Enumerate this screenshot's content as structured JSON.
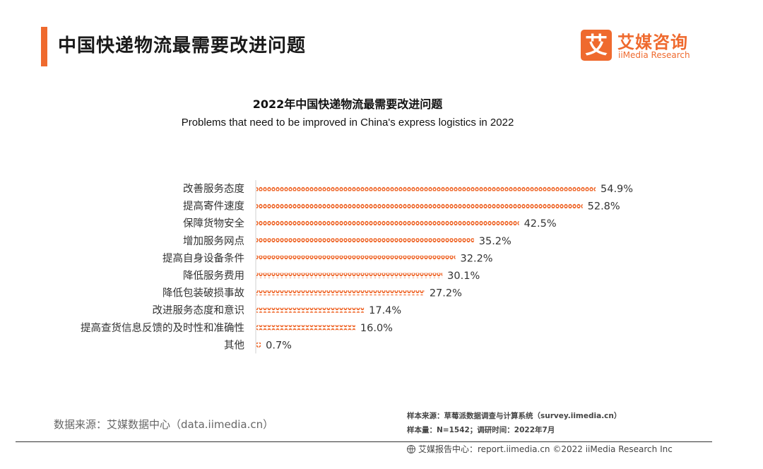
{
  "header": {
    "title": "中国快递物流最需要改进问题",
    "accent_color": "#ef6a2e"
  },
  "logo": {
    "mark": "艾",
    "cn": "艾媒咨询",
    "en": "iiMedia Research"
  },
  "chart_data": {
    "type": "bar",
    "orientation": "horizontal",
    "title": "2022年中国快递物流最需要改进问题",
    "subtitle": "Problems that need to be improved in China's express logistics in 2022",
    "categories": [
      "改善服务态度",
      "提高寄件速度",
      "保障货物安全",
      "增加服务网点",
      "提高自身设备条件",
      "降低服务费用",
      "降低包装破损事故",
      "改进服务态度和意识",
      "提高查货信息反馈的及时性和准确性",
      "其他"
    ],
    "values": [
      54.9,
      52.8,
      42.5,
      35.2,
      32.2,
      30.1,
      27.2,
      17.4,
      16.0,
      0.7
    ],
    "value_labels": [
      "54.9%",
      "52.8%",
      "42.5%",
      "35.2%",
      "32.2%",
      "30.1%",
      "27.2%",
      "17.4%",
      "16.0%",
      "0.7%"
    ],
    "unit": "%",
    "xlim": [
      0,
      60
    ],
    "bar_color": "#ef6a2e",
    "grid": false,
    "legend": "none"
  },
  "footer": {
    "source_left": "数据来源：艾媒数据中心（data.iimedia.cn）",
    "note_line1": "样本来源：草莓派数据调查与计算系统（survey.iimedia.cn）",
    "note_line2": "样本量：N=1542；调研时间：2022年7月",
    "copyright": "艾媒报告中心：report.iimedia.cn ©2022 iiMedia Research Inc"
  }
}
